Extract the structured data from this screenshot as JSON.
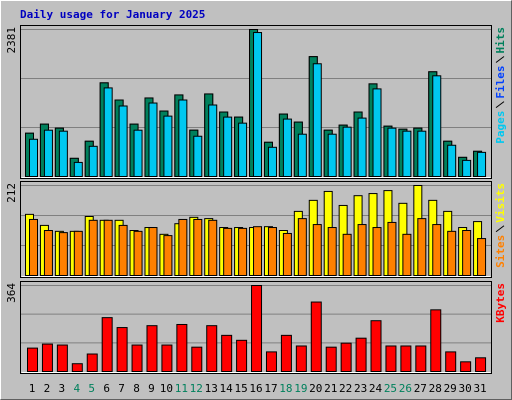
{
  "chart_data": [
    {
      "type": "bar",
      "title": "Daily usage for January 2025",
      "ylim": [
        0,
        2381
      ],
      "yticks": [
        2381
      ],
      "grid": true,
      "series": [
        {
          "name": "Pages",
          "color": "#00c8f0",
          "values": [
            603,
            750,
            734,
            228,
            489,
            1435,
            1142,
            750,
            1190,
            978,
            1239,
            652,
            1158,
            962,
            864,
            2332,
            473,
            930,
            685,
            1826,
            685,
            799,
            946,
            1419,
            783,
            734,
            734,
            1631,
            506,
            261,
            391
          ]
        },
        {
          "name": "Files",
          "color": "#0040ff",
          "values": [
            701,
            848,
            783,
            294,
            571,
            1517,
            1239,
            848,
            1272,
            1060,
            1321,
            750,
            1337,
            1044,
            962,
            2381,
            554,
            1011,
            881,
            1941,
            750,
            832,
            1044,
            1500,
            815,
            766,
            783,
            1696,
            571,
            310,
            408
          ]
        },
        {
          "name": "Hits",
          "color": "#00805c",
          "values": [
            701,
            848,
            783,
            294,
            571,
            1517,
            1239,
            848,
            1272,
            1060,
            1321,
            750,
            1337,
            1044,
            962,
            2381,
            554,
            1011,
            881,
            1941,
            750,
            832,
            1044,
            1500,
            815,
            766,
            783,
            1696,
            571,
            310,
            408
          ]
        }
      ]
    },
    {
      "type": "bar",
      "ylim": [
        0,
        212
      ],
      "yticks": [
        212
      ],
      "grid": true,
      "series": [
        {
          "name": "Sites",
          "color": "#ff8000",
          "values": [
            132,
            106,
            101,
            104,
            130,
            130,
            118,
            104,
            113,
            94,
            132,
            132,
            130,
            111,
            111,
            115,
            113,
            99,
            134,
            120,
            113,
            97,
            120,
            113,
            125,
            97,
            134,
            120,
            104,
            106,
            87
          ]
        },
        {
          "name": "Visits",
          "color": "#ffff00",
          "values": [
            144,
            118,
            104,
            104,
            139,
            130,
            130,
            106,
            113,
            97,
            122,
            137,
            134,
            113,
            113,
            113,
            115,
            106,
            151,
            177,
            198,
            165,
            188,
            193,
            200,
            170,
            212,
            177,
            151,
            113,
            127
          ]
        }
      ]
    },
    {
      "type": "bar",
      "ylim": [
        0,
        364
      ],
      "yticks": [
        364
      ],
      "grid": true,
      "categories": [
        "1",
        "2",
        "3",
        "4",
        "5",
        "6",
        "7",
        "8",
        "9",
        "10",
        "11",
        "12",
        "13",
        "14",
        "15",
        "16",
        "17",
        "18",
        "19",
        "20",
        "21",
        "22",
        "23",
        "24",
        "25",
        "26",
        "27",
        "28",
        "29",
        "30",
        "31"
      ],
      "category_colors": [
        "#000000",
        "#000000",
        "#000000",
        "#00805c",
        "#00805c",
        "#000000",
        "#000000",
        "#000000",
        "#000000",
        "#000000",
        "#00805c",
        "#00805c",
        "#000000",
        "#000000",
        "#000000",
        "#000000",
        "#000000",
        "#00805c",
        "#00805c",
        "#000000",
        "#000000",
        "#000000",
        "#000000",
        "#000000",
        "#00805c",
        "#00805c",
        "#000000",
        "#000000",
        "#000000",
        "#000000",
        "#000000"
      ],
      "series": [
        {
          "name": "KBytes",
          "color": "#ff0000",
          "values": [
            99,
            116,
            112,
            33,
            74,
            228,
            186,
            112,
            194,
            112,
            199,
            103,
            194,
            153,
            132,
            364,
            83,
            153,
            108,
            294,
            103,
            120,
            141,
            215,
            108,
            108,
            108,
            261,
            83,
            41,
            58
          ]
        }
      ]
    }
  ]
}
